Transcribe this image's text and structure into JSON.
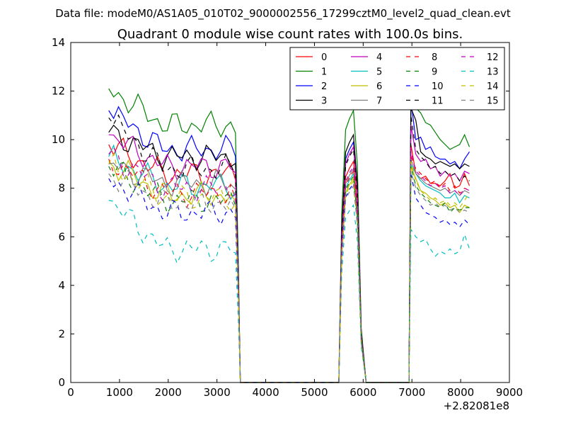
{
  "suptitle": "Data file: modeM0/AS1A05_010T02_9000002556_17299cztM0_level2_quad_clean.evt",
  "chart_data": {
    "type": "line",
    "title": "Quadrant 0 module wise count rates with 100.0s bins.",
    "xlabel": "",
    "ylabel": "",
    "x_offset_label": "+2.82081e8",
    "xlim": [
      0,
      9000
    ],
    "ylim": [
      0,
      14
    ],
    "xticks": [
      0,
      1000,
      2000,
      3000,
      4000,
      5000,
      6000,
      7000,
      8000,
      9000
    ],
    "yticks": [
      0,
      2,
      4,
      6,
      8,
      10,
      12,
      14
    ],
    "legend_position": "top-right",
    "legend_columns": 4,
    "segments": [
      {
        "start": 780,
        "count": 26
      },
      {
        "start": 3380,
        "count": 22
      },
      {
        "start": 5500,
        "count": 6
      },
      {
        "start": 6100,
        "count": 8
      },
      {
        "start": 6980,
        "count": 14
      }
    ],
    "series": [
      {
        "name": "0",
        "color": "#ff0000",
        "dash": "solid",
        "level": 8.6,
        "start": 9.8,
        "end": 7.9,
        "seg2": [
          9.8,
          8.6,
          8.4,
          8.5,
          8.2,
          8.2,
          8.1,
          8.3,
          8.6,
          8.0,
          8.1,
          8.6,
          8.1
        ],
        "peak": 9.1
      },
      {
        "name": "1",
        "color": "#008000",
        "dash": "solid",
        "level": 10.6,
        "start": 12.1,
        "end": 9.7,
        "seg2": [
          12.2,
          11.3,
          11.1,
          10.7,
          10.6,
          10.3,
          10.0,
          9.8,
          9.6,
          9.7,
          9.8,
          10.2,
          9.7
        ],
        "peak": 11.2
      },
      {
        "name": "2",
        "color": "#0000ff",
        "dash": "solid",
        "level": 9.6,
        "start": 11.2,
        "end": 9.5,
        "seg2": [
          11.6,
          10.0,
          10.1,
          9.6,
          9.7,
          9.3,
          9.2,
          9.2,
          9.0,
          9.1,
          8.8,
          9.2,
          9.5
        ],
        "peak": 9.9
      },
      {
        "name": "3",
        "color": "#000000",
        "dash": "solid",
        "level": 9.3,
        "start": 10.3,
        "end": 9.0,
        "seg2": [
          11.3,
          10.8,
          9.5,
          9.3,
          9.2,
          9.0,
          9.1,
          9.0,
          8.9,
          9.0,
          8.8,
          9.0,
          8.9
        ],
        "peak": 10.2
      },
      {
        "name": "4",
        "color": "#bf00bf",
        "dash": "solid",
        "level": 8.9,
        "start": 10.2,
        "end": 8.6,
        "seg2": [
          10.6,
          9.4,
          9.1,
          9.2,
          8.8,
          8.9,
          8.5,
          8.7,
          8.5,
          8.6,
          8.3,
          8.7,
          8.6
        ],
        "peak": 9.7
      },
      {
        "name": "5",
        "color": "#00bfbf",
        "dash": "solid",
        "level": 8.1,
        "start": 9.3,
        "end": 7.6,
        "seg2": [
          9.0,
          8.6,
          8.3,
          8.1,
          8.0,
          7.9,
          7.8,
          7.6,
          7.6,
          7.8,
          7.4,
          7.7,
          7.6
        ],
        "peak": 8.6
      },
      {
        "name": "6",
        "color": "#bfbf00",
        "dash": "solid",
        "level": 7.7,
        "start": 9.1,
        "end": 7.3,
        "seg2": [
          8.9,
          8.4,
          7.9,
          7.8,
          7.6,
          7.5,
          7.3,
          7.4,
          7.2,
          7.3,
          7.0,
          7.3,
          7.2
        ],
        "peak": 8.4
      },
      {
        "name": "7",
        "color": "#808080",
        "dash": "solid",
        "level": 8.2,
        "start": 9.0,
        "end": 7.8,
        "seg2": [
          9.2,
          8.6,
          8.4,
          8.2,
          8.1,
          8.0,
          7.9,
          8.0,
          7.8,
          7.9,
          7.7,
          7.9,
          7.8
        ],
        "peak": 8.8
      },
      {
        "name": "8",
        "color": "#ff0000",
        "dash": "dashed",
        "level": 7.8,
        "start": 9.2,
        "end": 7.9,
        "seg2": [
          9.3,
          8.8,
          8.6,
          8.4,
          8.2,
          8.3,
          8.0,
          8.2,
          7.9,
          8.1,
          7.8,
          8.0,
          7.9
        ],
        "peak": 8.7
      },
      {
        "name": "9",
        "color": "#008000",
        "dash": "dashed",
        "level": 7.5,
        "start": 8.9,
        "end": 7.2,
        "seg2": [
          8.9,
          8.1,
          7.8,
          7.6,
          7.4,
          7.3,
          7.2,
          7.4,
          7.0,
          7.2,
          7.1,
          7.2,
          7.2
        ],
        "peak": 8.5
      },
      {
        "name": "10",
        "color": "#0000ff",
        "dash": "dashed",
        "level": 7.0,
        "start": 8.4,
        "end": 6.5,
        "seg2": [
          8.6,
          7.6,
          7.3,
          7.0,
          6.9,
          6.8,
          6.6,
          6.7,
          6.5,
          6.6,
          6.4,
          6.7,
          6.5
        ],
        "peak": 8.2
      },
      {
        "name": "11",
        "color": "#000000",
        "dash": "dashed",
        "level": 8.8,
        "start": 10.9,
        "end": 8.3,
        "seg2": [
          11.0,
          9.6,
          9.3,
          9.1,
          8.8,
          8.9,
          8.6,
          8.7,
          8.5,
          8.6,
          8.3,
          8.5,
          8.3
        ],
        "peak": 9.6
      },
      {
        "name": "12",
        "color": "#bf00bf",
        "dash": "dashed",
        "level": 8.0,
        "start": 9.4,
        "end": 7.9,
        "seg2": [
          9.5,
          8.7,
          8.5,
          8.3,
          8.1,
          8.2,
          8.0,
          8.1,
          7.8,
          7.9,
          7.7,
          8.0,
          7.9
        ],
        "peak": 8.9
      },
      {
        "name": "13",
        "color": "#00bfbf",
        "dash": "dashed",
        "level": 5.5,
        "start": 7.5,
        "end": 5.5,
        "seg2": [
          6.3,
          6.0,
          5.8,
          5.9,
          5.5,
          5.2,
          5.4,
          5.3,
          5.5,
          5.3,
          5.4,
          6.1,
          5.5
        ],
        "peak": 7.3
      },
      {
        "name": "14",
        "color": "#bfbf00",
        "dash": "dashed",
        "level": 7.6,
        "start": 9.0,
        "end": 7.8,
        "seg2": [
          9.1,
          8.3,
          7.9,
          7.7,
          7.5,
          7.6,
          7.4,
          7.5,
          7.3,
          7.4,
          7.2,
          7.5,
          7.8
        ],
        "peak": 8.3
      },
      {
        "name": "15",
        "color": "#808080",
        "dash": "dashed",
        "level": 7.4,
        "start": 8.6,
        "end": 7.0,
        "seg2": [
          8.7,
          8.0,
          7.7,
          7.5,
          7.3,
          7.4,
          7.2,
          7.3,
          7.1,
          7.2,
          7.0,
          7.1,
          7.0
        ],
        "peak": 8.1
      }
    ]
  }
}
